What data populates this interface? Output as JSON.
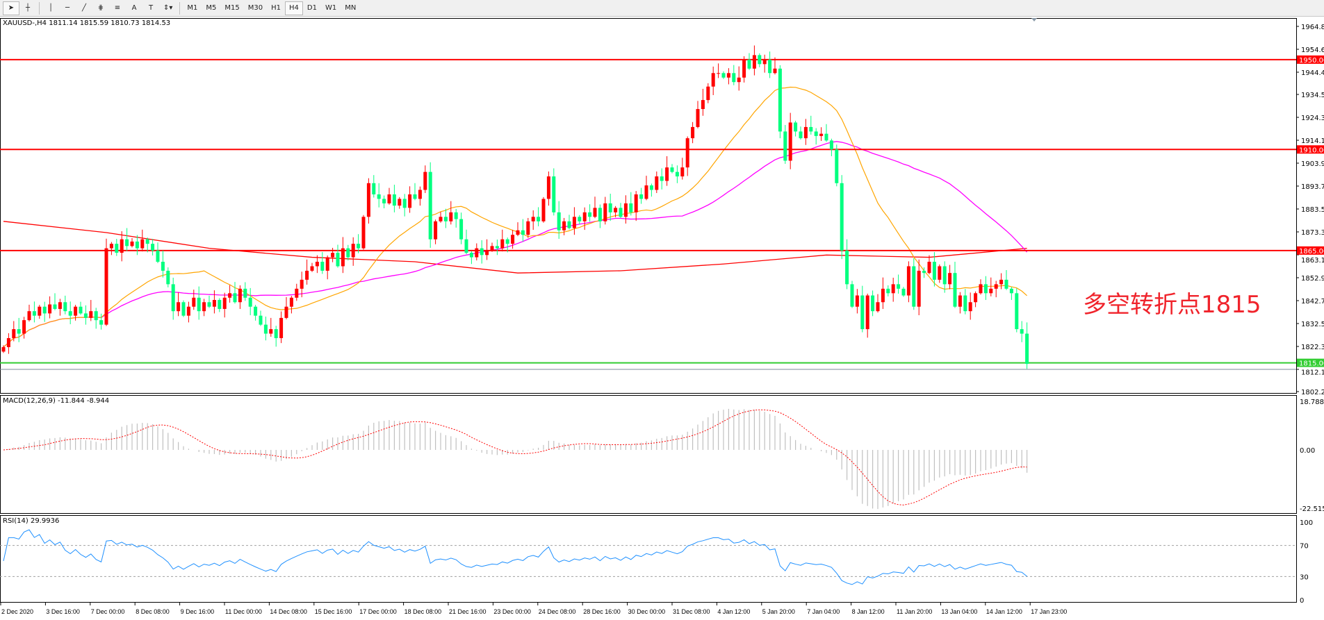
{
  "toolbar": {
    "tools": [
      {
        "name": "cursor-icon",
        "glyph": "➤"
      },
      {
        "name": "crosshair-icon",
        "glyph": "┼"
      },
      {
        "name": "vertical-line-icon",
        "glyph": "│"
      },
      {
        "name": "horizontal-line-icon",
        "glyph": "─"
      },
      {
        "name": "trendline-icon",
        "glyph": "╱"
      },
      {
        "name": "fibonacci-channel-icon",
        "glyph": "⋕"
      },
      {
        "name": "fibonacci-icon",
        "glyph": "≡"
      },
      {
        "name": "text-icon",
        "glyph": "A"
      },
      {
        "name": "text-label-icon",
        "glyph": "T"
      },
      {
        "name": "arrows-icon",
        "glyph": "⇕▾"
      }
    ],
    "timeframes": [
      "M1",
      "M5",
      "M15",
      "M30",
      "H1",
      "H4",
      "D1",
      "W1",
      "MN"
    ],
    "active_timeframe": "H4"
  },
  "chart": {
    "header": "XAUUSD-,H4  1811.14 1815.59 1810.73 1814.53",
    "colors": {
      "up": "#ff0000",
      "down": "#00ff7f",
      "ma_fast": "#ffa500",
      "ma_mid": "#ff00ff",
      "ma_slow": "#ff0000",
      "level_red": "#ff0000",
      "level_green": "#32cd32"
    },
    "price_axis": [
      "1964.80",
      "1954.60",
      "1944.40",
      "1934.50",
      "1924.30",
      "1914.10",
      "1903.90",
      "1893.70",
      "1883.50",
      "1873.30",
      "1863.10",
      "1852.90",
      "1842.70",
      "1832.50",
      "1822.30",
      "1812.10",
      "1802.20"
    ],
    "levels": [
      {
        "price": 1950,
        "label": "1950.00",
        "color": "red"
      },
      {
        "price": 1910,
        "label": "1910.00",
        "color": "red"
      },
      {
        "price": 1865,
        "label": "1865.00",
        "color": "red"
      },
      {
        "price": 1815,
        "label": "1815.00",
        "color": "green"
      }
    ],
    "bid_price": 1812.1,
    "annotation": "多空转折点1815",
    "closes": [
      1822,
      1826,
      1830,
      1828,
      1834,
      1838,
      1836,
      1840,
      1837,
      1841,
      1839,
      1842,
      1838,
      1836,
      1840,
      1837,
      1835,
      1838,
      1834,
      1832,
      1866,
      1868,
      1864,
      1870,
      1867,
      1869,
      1866,
      1870,
      1868,
      1865,
      1860,
      1856,
      1850,
      1838,
      1842,
      1836,
      1840,
      1844,
      1838,
      1842,
      1840,
      1843,
      1839,
      1844,
      1846,
      1842,
      1848,
      1844,
      1840,
      1836,
      1832,
      1828,
      1830,
      1826,
      1835,
      1840,
      1844,
      1848,
      1852,
      1856,
      1858,
      1860,
      1856,
      1862,
      1864,
      1858,
      1866,
      1862,
      1868,
      1866,
      1880,
      1895,
      1890,
      1888,
      1886,
      1890,
      1885,
      1888,
      1884,
      1890,
      1888,
      1892,
      1900,
      1870,
      1878,
      1880,
      1878,
      1882,
      1879,
      1870,
      1864,
      1862,
      1866,
      1863,
      1865,
      1867,
      1866,
      1870,
      1868,
      1872,
      1874,
      1872,
      1878,
      1880,
      1878,
      1888,
      1898,
      1882,
      1874,
      1878,
      1875,
      1880,
      1878,
      1882,
      1880,
      1884,
      1878,
      1886,
      1882,
      1884,
      1880,
      1886,
      1882,
      1890,
      1888,
      1894,
      1892,
      1898,
      1896,
      1902,
      1900,
      1898,
      1902,
      1915,
      1920,
      1928,
      1932,
      1938,
      1944,
      1944,
      1942,
      1944,
      1940,
      1942,
      1950,
      1946,
      1952,
      1948,
      1950,
      1944,
      1946,
      1918,
      1905,
      1922,
      1918,
      1915,
      1920,
      1918,
      1916,
      1917,
      1914,
      1910,
      1895,
      1865,
      1850,
      1840,
      1845,
      1830,
      1845,
      1838,
      1842,
      1848,
      1846,
      1850,
      1848,
      1845,
      1858,
      1840,
      1856,
      1855,
      1860,
      1852,
      1858,
      1850,
      1855,
      1840,
      1845,
      1838,
      1842,
      1846,
      1850,
      1846,
      1848,
      1850,
      1852,
      1848,
      1846,
      1830,
      1828,
      1814.53
    ],
    "ma_slow": [
      1878,
      1873,
      1866,
      1862,
      1860,
      1855,
      1856,
      1859,
      1863,
      1862,
      1866
    ]
  },
  "macd": {
    "header": "MACD(12,26,9) -11.844 -8.944",
    "axis": [
      "18.788",
      "0.00",
      "-22.515"
    ]
  },
  "rsi": {
    "header": "RSI(14) 29.9936",
    "axis": [
      "100",
      "70",
      "30",
      "0"
    ]
  },
  "time_axis": [
    "2 Dec 2020",
    "3 Dec 16:00",
    "7 Dec 00:00",
    "8 Dec 08:00",
    "9 Dec 16:00",
    "11 Dec 00:00",
    "14 Dec 08:00",
    "15 Dec 16:00",
    "17 Dec 00:00",
    "18 Dec 08:00",
    "21 Dec 16:00",
    "23 Dec 00:00",
    "24 Dec 08:00",
    "28 Dec 16:00",
    "30 Dec 00:00",
    "31 Dec 08:00",
    "4 Jan 12:00",
    "5 Jan 20:00",
    "7 Jan 04:00",
    "8 Jan 12:00",
    "11 Jan 20:00",
    "13 Jan 04:00",
    "14 Jan 12:00",
    "17 Jan 23:00"
  ]
}
